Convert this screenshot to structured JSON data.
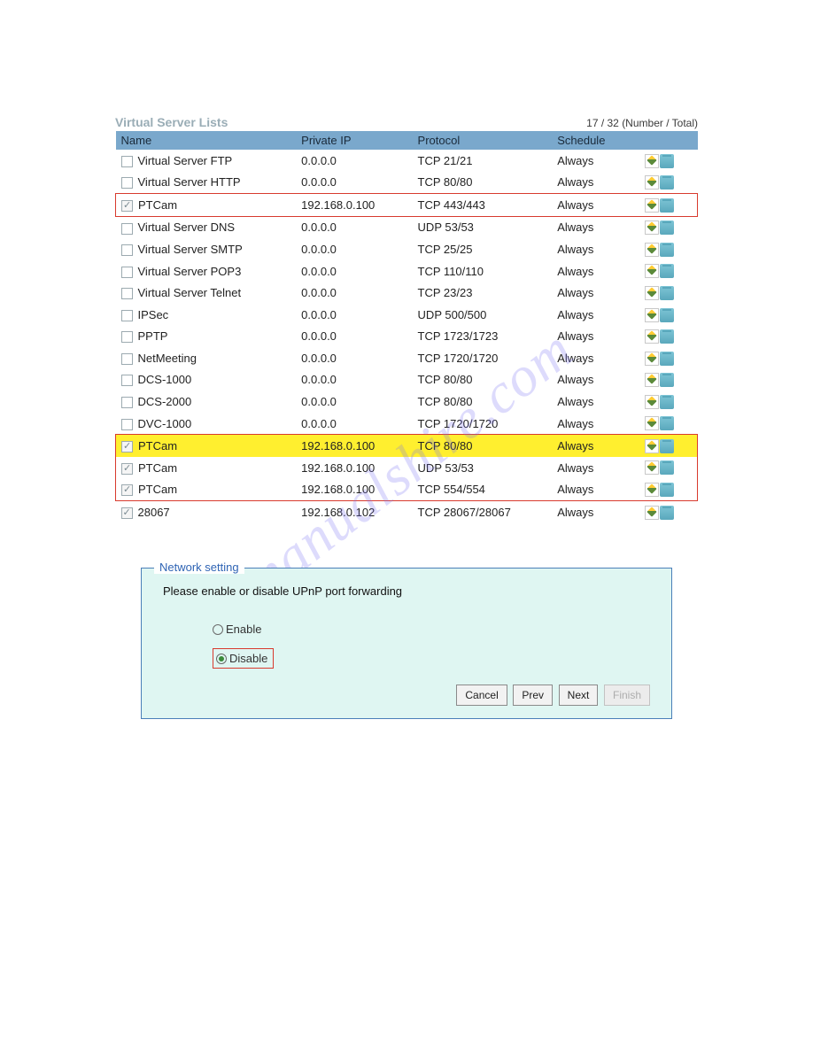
{
  "title": "Virtual Server Lists",
  "count_text": "17 / 32 (Number / Total)",
  "columns": [
    "Name",
    "Private IP",
    "Protocol",
    "Schedule"
  ],
  "rows": [
    {
      "checked": false,
      "name": "Virtual Server FTP",
      "ip": "0.0.0.0",
      "proto": "TCP 21/21",
      "sched": "Always",
      "hl": ""
    },
    {
      "checked": false,
      "name": "Virtual Server HTTP",
      "ip": "0.0.0.0",
      "proto": "TCP 80/80",
      "sched": "Always",
      "hl": ""
    },
    {
      "checked": true,
      "name": "PTCam",
      "ip": "192.168.0.100",
      "proto": "TCP 443/443",
      "sched": "Always",
      "hl": "single"
    },
    {
      "checked": false,
      "name": "Virtual Server DNS",
      "ip": "0.0.0.0",
      "proto": "UDP 53/53",
      "sched": "Always",
      "hl": ""
    },
    {
      "checked": false,
      "name": "Virtual Server SMTP",
      "ip": "0.0.0.0",
      "proto": "TCP 25/25",
      "sched": "Always",
      "hl": ""
    },
    {
      "checked": false,
      "name": "Virtual Server POP3",
      "ip": "0.0.0.0",
      "proto": "TCP 110/110",
      "sched": "Always",
      "hl": ""
    },
    {
      "checked": false,
      "name": "Virtual Server Telnet",
      "ip": "0.0.0.0",
      "proto": "TCP 23/23",
      "sched": "Always",
      "hl": ""
    },
    {
      "checked": false,
      "name": "IPSec",
      "ip": "0.0.0.0",
      "proto": "UDP 500/500",
      "sched": "Always",
      "hl": ""
    },
    {
      "checked": false,
      "name": "PPTP",
      "ip": "0.0.0.0",
      "proto": "TCP 1723/1723",
      "sched": "Always",
      "hl": ""
    },
    {
      "checked": false,
      "name": "NetMeeting",
      "ip": "0.0.0.0",
      "proto": "TCP 1720/1720",
      "sched": "Always",
      "hl": ""
    },
    {
      "checked": false,
      "name": "DCS-1000",
      "ip": "0.0.0.0",
      "proto": "TCP 80/80",
      "sched": "Always",
      "hl": ""
    },
    {
      "checked": false,
      "name": "DCS-2000",
      "ip": "0.0.0.0",
      "proto": "TCP 80/80",
      "sched": "Always",
      "hl": ""
    },
    {
      "checked": false,
      "name": "DVC-1000",
      "ip": "0.0.0.0",
      "proto": "TCP 1720/1720",
      "sched": "Always",
      "hl": ""
    },
    {
      "checked": true,
      "name": "PTCam",
      "ip": "192.168.0.100",
      "proto": "TCP 80/80",
      "sched": "Always",
      "hl": "group-top-yellow"
    },
    {
      "checked": true,
      "name": "PTCam",
      "ip": "192.168.0.100",
      "proto": "UDP 53/53",
      "sched": "Always",
      "hl": "group-mid"
    },
    {
      "checked": true,
      "name": "PTCam",
      "ip": "192.168.0.100",
      "proto": "TCP 554/554",
      "sched": "Always",
      "hl": "group-bot"
    },
    {
      "checked": true,
      "name": "28067",
      "ip": "192.168.0.102",
      "proto": "TCP 28067/28067",
      "sched": "Always",
      "hl": ""
    }
  ],
  "panel": {
    "legend": "Network setting",
    "prompt": "Please enable or disable UPnP port forwarding",
    "enable_label": "Enable",
    "disable_label": "Disable",
    "buttons": {
      "cancel": "Cancel",
      "prev": "Prev",
      "next": "Next",
      "finish": "Finish"
    }
  },
  "watermark": "manualshire.com",
  "colors": {
    "header_bg": "#7aa8cc",
    "title_color": "#9aadb6",
    "red": "#d83a2e",
    "yellow": "#ffef2f",
    "panel_bg": "#dff6f2",
    "panel_border": "#4a7fb8",
    "legend_color": "#2f64b4"
  }
}
